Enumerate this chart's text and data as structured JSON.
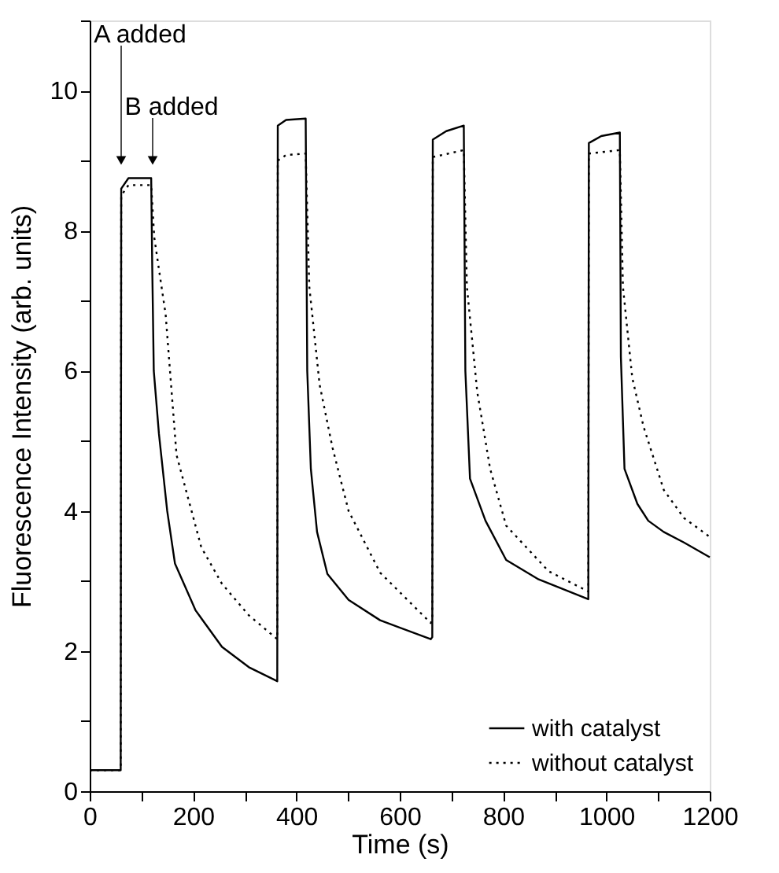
{
  "chart_data": {
    "type": "line",
    "xlabel": "Time (s)",
    "ylabel": "Fluorescence Intensity (arb. units)",
    "xlim": [
      0,
      1200
    ],
    "ylim": [
      0,
      11
    ],
    "xticks": [
      0,
      {
        "value": 100,
        "label": null
      },
      200,
      {
        "value": 300,
        "label": null
      },
      400,
      {
        "value": 500,
        "label": null
      },
      600,
      {
        "value": 700,
        "label": null
      },
      800,
      {
        "value": 900,
        "label": null
      },
      1000,
      {
        "value": 1100,
        "label": null
      },
      1200
    ],
    "yticks": [
      0,
      {
        "value": 1,
        "label": null
      },
      2,
      {
        "value": 3,
        "label": null
      },
      4,
      {
        "value": 5,
        "label": null
      },
      6,
      {
        "value": 7,
        "label": null
      },
      8,
      {
        "value": 9,
        "label": null
      },
      10,
      {
        "value": 11,
        "label": null
      }
    ],
    "grid": false,
    "legend": "bottom right",
    "marker": "none",
    "annotations": [
      "A added",
      "B added"
    ],
    "series": [
      {
        "name": "with catalyst",
        "color": "#000000",
        "line_style": "solid",
        "x": [
          0,
          60,
          61,
          75,
          119,
          121,
          124,
          134,
          150,
          165,
          205,
          256,
          308,
          363,
          364,
          380,
          418,
          421,
          428,
          440,
          460,
          501,
          562,
          660,
          663,
          664,
          690,
          724,
          727,
          736,
          766,
          806,
          867,
          965,
          966,
          990,
          1026,
          1028,
          1035,
          1060,
          1081,
          1111,
          1150,
          1200
        ],
        "values": [
          0.3,
          0.3,
          8.6,
          8.75,
          8.75,
          7.5,
          6.0,
          5.1,
          4.0,
          3.25,
          2.58,
          2.06,
          1.77,
          1.57,
          9.5,
          9.58,
          9.6,
          6.0,
          4.6,
          3.7,
          3.1,
          2.73,
          2.44,
          2.17,
          2.2,
          9.3,
          9.42,
          9.5,
          6.0,
          4.46,
          3.86,
          3.3,
          3.03,
          2.74,
          9.25,
          9.35,
          9.4,
          6.2,
          4.6,
          4.1,
          3.86,
          3.7,
          3.55,
          3.34
        ]
      },
      {
        "name": "without catalyst",
        "color": "#000000",
        "line_style": "dotted",
        "x": [
          0,
          60,
          61,
          75,
          119,
          125,
          147,
          168,
          216,
          256,
          308,
          363,
          364,
          380,
          418,
          425,
          445,
          470,
          501,
          562,
          660,
          663,
          664,
          724,
          730,
          750,
          775,
          806,
          888,
          965,
          966,
          1026,
          1032,
          1050,
          1072,
          1111,
          1150,
          1200
        ],
        "values": [
          0.3,
          0.3,
          8.5,
          8.65,
          8.65,
          7.9,
          6.8,
          4.8,
          3.48,
          2.96,
          2.51,
          2.17,
          9.0,
          9.08,
          9.1,
          7.2,
          5.8,
          4.9,
          4.0,
          3.12,
          2.4,
          2.45,
          9.05,
          9.15,
          7.2,
          5.7,
          4.6,
          3.79,
          3.14,
          2.85,
          9.1,
          9.15,
          7.2,
          5.9,
          5.2,
          4.3,
          3.9,
          3.63
        ]
      }
    ]
  }
}
